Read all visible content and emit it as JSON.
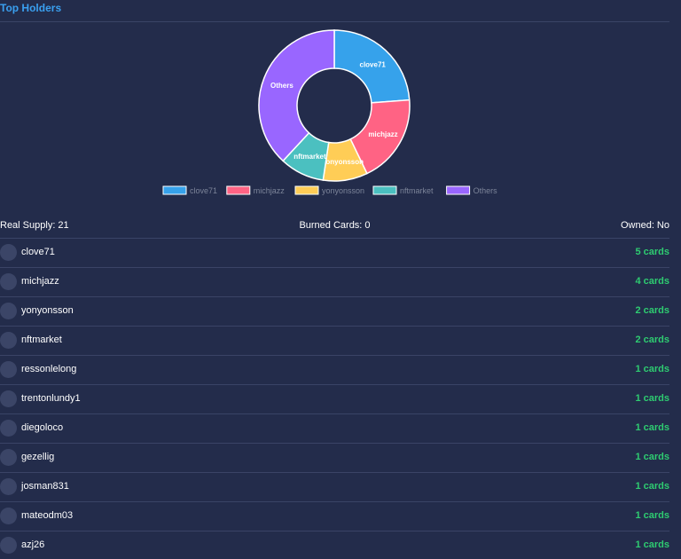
{
  "header": {
    "title": "Top Holders"
  },
  "chart_data": {
    "type": "pie",
    "categories": [
      "clove71",
      "michjazz",
      "yonyonsson",
      "nftmarket",
      "Others"
    ],
    "values": [
      5,
      4,
      2,
      2,
      8
    ],
    "colors": [
      "#36a2eb",
      "#ff6384",
      "#ffcd56",
      "#4bc0c0",
      "#9966ff"
    ],
    "donut": true,
    "slice_labels": true,
    "legend": "bottom"
  },
  "stats": {
    "real_supply": "Real Supply: 21",
    "burned_cards": "Burned Cards: 0",
    "owned": "Owned: No"
  },
  "holders": [
    {
      "name": "clove71",
      "count": "5 cards"
    },
    {
      "name": "michjazz",
      "count": "4 cards"
    },
    {
      "name": "yonyonsson",
      "count": "2 cards"
    },
    {
      "name": "nftmarket",
      "count": "2 cards"
    },
    {
      "name": "ressonlelong",
      "count": "1 cards"
    },
    {
      "name": "trentonlundy1",
      "count": "1 cards"
    },
    {
      "name": "diegoloco",
      "count": "1 cards"
    },
    {
      "name": "gezellig",
      "count": "1 cards"
    },
    {
      "name": "josman831",
      "count": "1 cards"
    },
    {
      "name": "mateodm03",
      "count": "1 cards"
    },
    {
      "name": "azj26",
      "count": "1 cards"
    }
  ]
}
